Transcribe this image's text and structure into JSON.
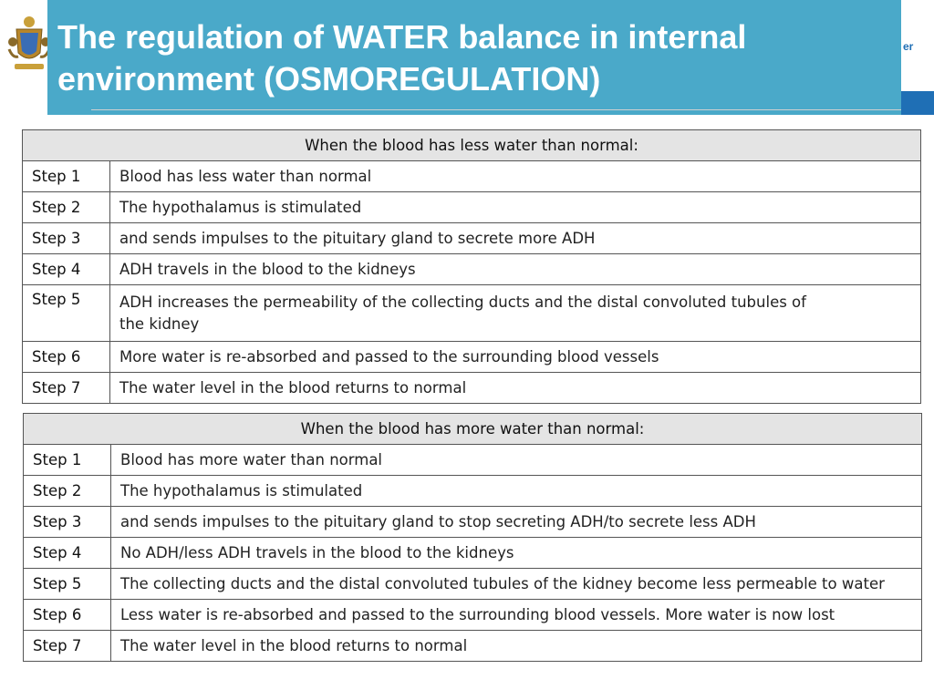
{
  "title": {
    "line1": "The regulation of WATER balance in internal",
    "line2": "environment (OSMOREGULATION)"
  },
  "banner": {
    "text": "er"
  },
  "table_less": {
    "header": "When the blood has less water than normal:",
    "rows": [
      {
        "step": "Step 1",
        "text": "Blood has less water than normal"
      },
      {
        "step": "Step 2",
        "text": "The hypothalamus is stimulated"
      },
      {
        "step": "Step 3",
        "text": "and sends impulses to the pituitary gland  to secrete more ADH"
      },
      {
        "step": "Step 4",
        "text": "ADH travels in the blood to the kidneys"
      },
      {
        "step": "Step 5",
        "text_line1": "ADH increases the permeability of the collecting ducts and the distal convoluted tubules of",
        "text_line2": "the kidney"
      },
      {
        "step": "Step 6",
        "text": "More water is re-absorbed and passed to the surrounding blood vessels"
      },
      {
        "step": "Step 7",
        "text": "The water level in the blood returns to normal"
      }
    ]
  },
  "table_more": {
    "header": "When the blood has more water than normal:",
    "rows": [
      {
        "step": "Step 1",
        "text": "Blood has more water than normal"
      },
      {
        "step": "Step 2",
        "text": "The hypothalamus is stimulated"
      },
      {
        "step": "Step 3",
        "text": "and sends impulses to the pituitary gland  to stop secreting ADH/to secrete less ADH"
      },
      {
        "step": "Step 4",
        "text": "No ADH/less ADH travels in the blood to the kidneys"
      },
      {
        "step": "Step 5",
        "text": "The collecting ducts and the distal convoluted tubules of the kidney become less permeable to water"
      },
      {
        "step": "Step 6",
        "text": "Less water is re-absorbed and passed to the surrounding blood vessels. More water is now lost"
      },
      {
        "step": "Step 7",
        "text": "The water level in the blood returns to normal"
      }
    ]
  },
  "colors": {
    "title_bg": "#4aa9c9",
    "header_bg": "#e4e4e4",
    "accent_blue": "#1f6fb5"
  }
}
